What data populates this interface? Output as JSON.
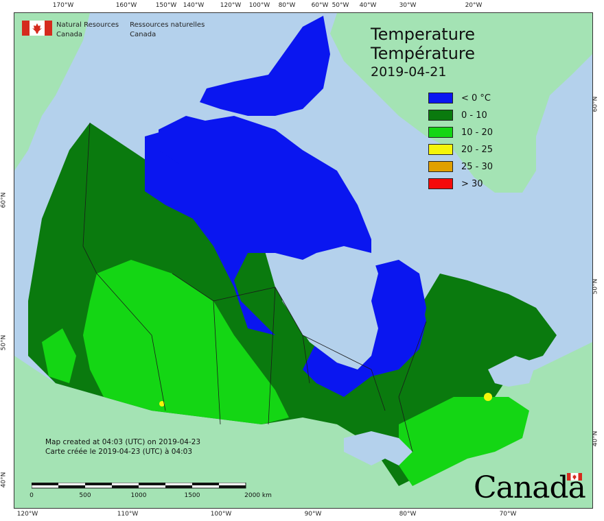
{
  "map": {
    "title_en": "Temperature",
    "title_fr": "Température",
    "date": "2019-04-21",
    "colors": {
      "ocean": "#b4d1ec",
      "land_other": "#a4e3b4",
      "below_0": "#0a16f0",
      "r0_10": "#0a7a0e",
      "r10_20": "#14d614",
      "r20_25": "#f5f50a",
      "r25_30": "#e0a000",
      "above_30": "#f50a0a"
    }
  },
  "agency": {
    "en_line1": "Natural Resources",
    "en_line2": "Canada",
    "fr_line1": "Ressources naturelles",
    "fr_line2": "Canada"
  },
  "legend": {
    "items": [
      {
        "label": "< 0 °C",
        "color": "#0a16f0"
      },
      {
        "label": "0 - 10",
        "color": "#0a7a0e"
      },
      {
        "label": "10 - 20",
        "color": "#14d614"
      },
      {
        "label": "20 - 25",
        "color": "#f5f50a"
      },
      {
        "label": "25 - 30",
        "color": "#e0a000"
      },
      {
        "label": "> 30",
        "color": "#f50a0a"
      }
    ]
  },
  "credits": {
    "line_en": "Map created at 04:03 (UTC) on 2019-04-23",
    "line_fr": "Carte créée le 2019-04-23 (UTC) à 04:03"
  },
  "scale_bar": {
    "labels": [
      "0",
      "500",
      "1000",
      "1500",
      "2000  km"
    ]
  },
  "ticks": {
    "top": [
      "170°W",
      "160°W",
      "150°W",
      "140°W",
      "120°W",
      "100°W",
      "80°W",
      "60°W",
      "50°W",
      "40°W",
      "30°W",
      "20°W"
    ],
    "bottom": [
      "120°W",
      "110°W",
      "100°W",
      "90°W",
      "80°W",
      "70°W"
    ],
    "left": [
      "60°N",
      "50°N",
      "40°N"
    ],
    "right": [
      "60°N",
      "50°N",
      "40°N"
    ]
  },
  "wordmark": "Canada"
}
